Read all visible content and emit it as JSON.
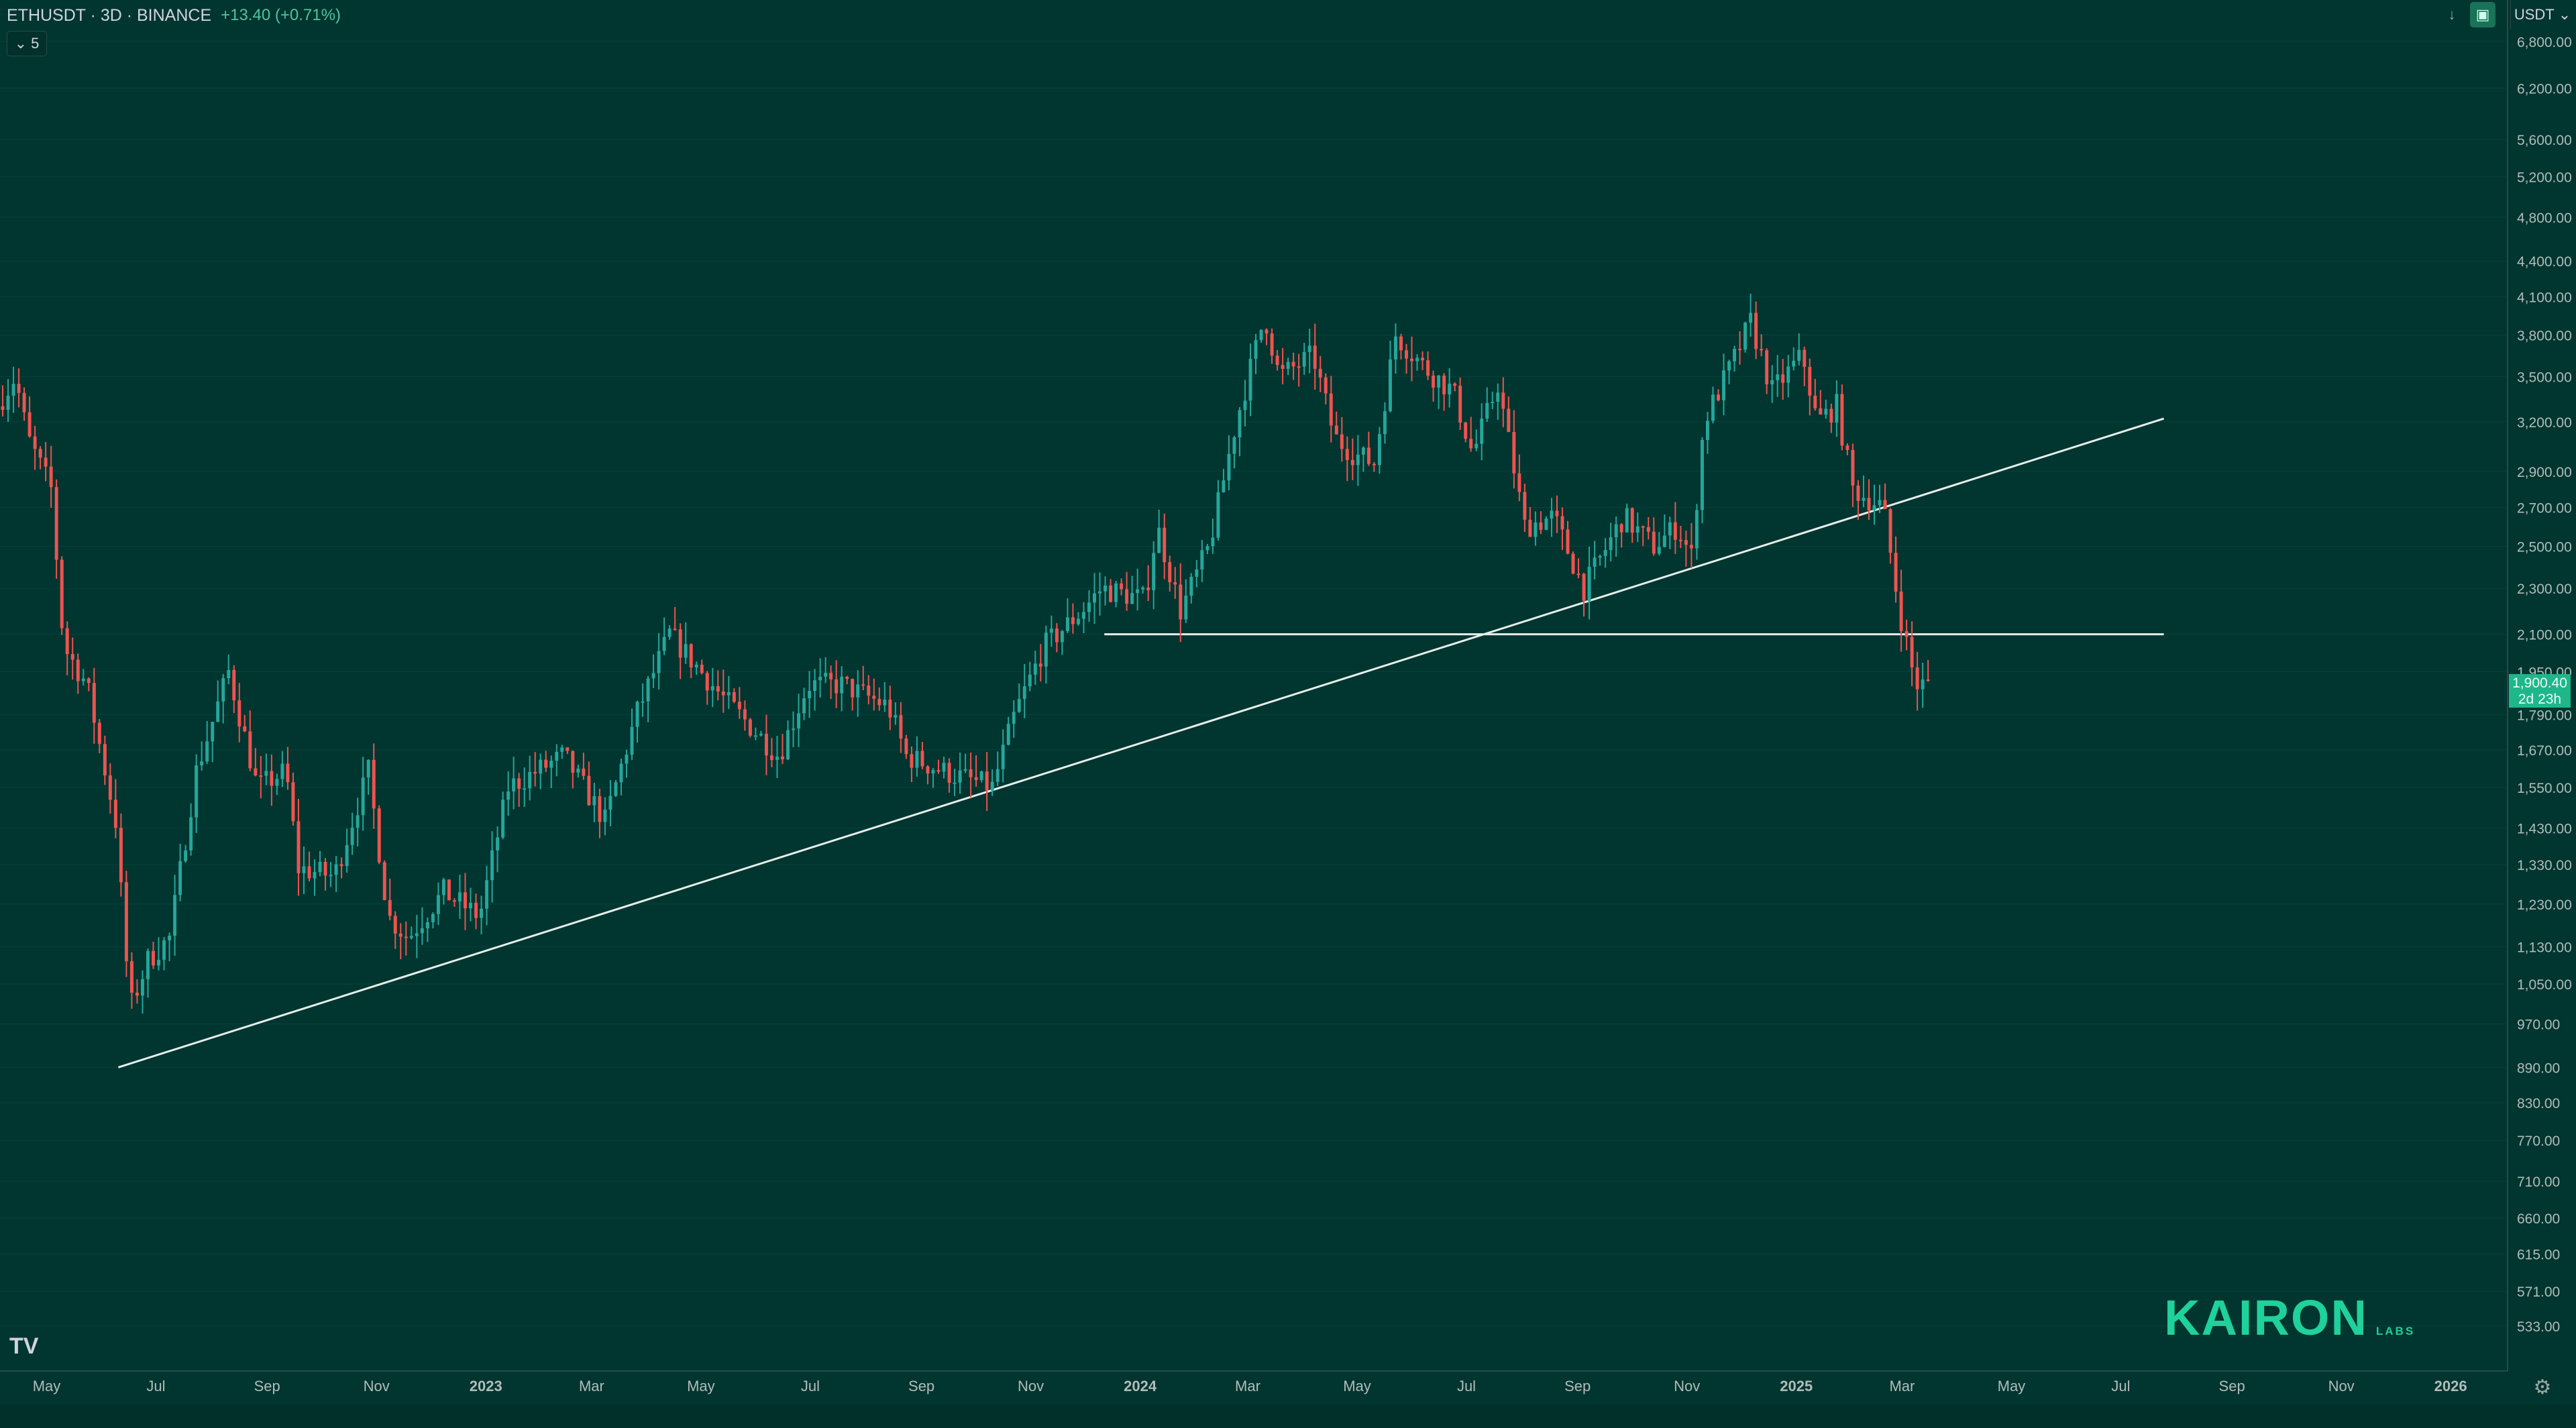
{
  "header": {
    "symbol_line": "ETHUSDT · 3D · BINANCE",
    "change": "+13.40 (+0.71%)"
  },
  "indicator_toggle": {
    "count": "5"
  },
  "currency": "USDT",
  "last_price": {
    "value": "1,900.40",
    "countdown": "2d 23h"
  },
  "watermark": {
    "brand": "KAIRON",
    "sub": "LABS"
  },
  "colors": {
    "background": "#013530",
    "up": "#26a69a",
    "down": "#ef5350",
    "trendline": "#e6efe9",
    "accent": "#1fd19a"
  },
  "chart_data": {
    "type": "candlestick",
    "yscale": "log",
    "ylim": [
      500,
      7000
    ],
    "xlim": [
      "2022-04-05",
      "2026-02-01"
    ],
    "y_ticks": [
      533,
      571,
      615,
      660,
      710,
      770,
      830,
      890,
      970,
      1050,
      1130,
      1230,
      1330,
      1430,
      1550,
      1670,
      1790,
      1950,
      2100,
      2300,
      2500,
      2700,
      2900,
      3200,
      3500,
      3800,
      4100,
      4400,
      4800,
      5200,
      5600,
      6200,
      6800
    ],
    "y_tick_labels": [
      "533.00",
      "571.00",
      "615.00",
      "660.00",
      "710.00",
      "770.00",
      "830.00",
      "890.00",
      "970.00",
      "1,050.00",
      "1,130.00",
      "1,230.00",
      "1,330.00",
      "1,430.00",
      "1,550.00",
      "1,670.00",
      "1,790.00",
      "1,950.00",
      "2,100.00",
      "2,300.00",
      "2,500.00",
      "2,700.00",
      "2,900.00",
      "3,200.00",
      "3,500.00",
      "3,800.00",
      "4,100.00",
      "4,400.00",
      "4,800.00",
      "5,200.00",
      "5,600.00",
      "6,200.00",
      "6,800.00"
    ],
    "x_ticks": [
      {
        "date": "2022-05-01",
        "label": "May"
      },
      {
        "date": "2022-07-01",
        "label": "Jul"
      },
      {
        "date": "2022-09-01",
        "label": "Sep"
      },
      {
        "date": "2022-11-01",
        "label": "Nov"
      },
      {
        "date": "2023-01-01",
        "label": "2023"
      },
      {
        "date": "2023-03-01",
        "label": "Mar"
      },
      {
        "date": "2023-05-01",
        "label": "May"
      },
      {
        "date": "2023-07-01",
        "label": "Jul"
      },
      {
        "date": "2023-09-01",
        "label": "Sep"
      },
      {
        "date": "2023-11-01",
        "label": "Nov"
      },
      {
        "date": "2024-01-01",
        "label": "2024"
      },
      {
        "date": "2024-03-01",
        "label": "Mar"
      },
      {
        "date": "2024-05-01",
        "label": "May"
      },
      {
        "date": "2024-07-01",
        "label": "Jul"
      },
      {
        "date": "2024-09-01",
        "label": "Sep"
      },
      {
        "date": "2024-11-01",
        "label": "Nov"
      },
      {
        "date": "2025-01-01",
        "label": "2025"
      },
      {
        "date": "2025-03-01",
        "label": "Mar"
      },
      {
        "date": "2025-05-01",
        "label": "May"
      },
      {
        "date": "2025-07-01",
        "label": "Jul"
      },
      {
        "date": "2025-09-01",
        "label": "Sep"
      },
      {
        "date": "2025-11-01",
        "label": "Nov"
      },
      {
        "date": "2026-01-01",
        "label": "2026"
      }
    ],
    "price_path": [
      [
        "2022-04-05",
        3300
      ],
      [
        "2022-04-15",
        3500
      ],
      [
        "2022-04-22",
        3100
      ],
      [
        "2022-05-05",
        2800
      ],
      [
        "2022-05-12",
        2050
      ],
      [
        "2022-05-25",
        1900
      ],
      [
        "2022-06-10",
        1450
      ],
      [
        "2022-06-18",
        1000
      ],
      [
        "2022-06-28",
        1100
      ],
      [
        "2022-07-10",
        1150
      ],
      [
        "2022-07-25",
        1600
      ],
      [
        "2022-08-12",
        1950
      ],
      [
        "2022-08-28",
        1550
      ],
      [
        "2022-09-13",
        1600
      ],
      [
        "2022-09-20",
        1320
      ],
      [
        "2022-10-10",
        1300
      ],
      [
        "2022-10-29",
        1600
      ],
      [
        "2022-11-09",
        1200
      ],
      [
        "2022-11-20",
        1150
      ],
      [
        "2022-12-10",
        1260
      ],
      [
        "2022-12-30",
        1200
      ],
      [
        "2023-01-15",
        1550
      ],
      [
        "2023-02-15",
        1650
      ],
      [
        "2023-03-10",
        1450
      ],
      [
        "2023-03-28",
        1800
      ],
      [
        "2023-04-15",
        2100
      ],
      [
        "2023-05-15",
        1850
      ],
      [
        "2023-06-15",
        1650
      ],
      [
        "2023-07-01",
        1900
      ],
      [
        "2023-07-20",
        1900
      ],
      [
        "2023-08-15",
        1820
      ],
      [
        "2023-08-25",
        1650
      ],
      [
        "2023-09-15",
        1600
      ],
      [
        "2023-10-12",
        1550
      ],
      [
        "2023-10-25",
        1800
      ],
      [
        "2023-11-10",
        2050
      ],
      [
        "2023-12-01",
        2200
      ],
      [
        "2023-12-12",
        2300
      ],
      [
        "2024-01-05",
        2250
      ],
      [
        "2024-01-12",
        2600
      ],
      [
        "2024-01-25",
        2200
      ],
      [
        "2024-02-10",
        2500
      ],
      [
        "2024-02-25",
        3200
      ],
      [
        "2024-03-12",
        3950
      ],
      [
        "2024-03-20",
        3500
      ],
      [
        "2024-04-08",
        3650
      ],
      [
        "2024-04-20",
        3100
      ],
      [
        "2024-05-01",
        3000
      ],
      [
        "2024-05-12",
        2950
      ],
      [
        "2024-05-24",
        3800
      ],
      [
        "2024-06-10",
        3550
      ],
      [
        "2024-06-25",
        3400
      ],
      [
        "2024-07-06",
        3000
      ],
      [
        "2024-07-20",
        3450
      ],
      [
        "2024-08-04",
        2600
      ],
      [
        "2024-08-20",
        2650
      ],
      [
        "2024-09-06",
        2300
      ],
      [
        "2024-09-28",
        2650
      ],
      [
        "2024-10-15",
        2500
      ],
      [
        "2024-10-28",
        2600
      ],
      [
        "2024-11-05",
        2450
      ],
      [
        "2024-11-12",
        3200
      ],
      [
        "2024-11-28",
        3600
      ],
      [
        "2024-12-08",
        3900
      ],
      [
        "2024-12-20",
        3400
      ],
      [
        "2025-01-06",
        3650
      ],
      [
        "2025-01-14",
        3200
      ],
      [
        "2025-01-25",
        3300
      ],
      [
        "2025-02-03",
        2800
      ],
      [
        "2025-02-20",
        2700
      ],
      [
        "2025-03-01",
        2200
      ],
      [
        "2025-03-10",
        1900
      ],
      [
        "2025-03-14",
        1900
      ]
    ],
    "trendlines": [
      {
        "start": [
          "2022-06-10",
          890
        ],
        "end": [
          "2025-07-25",
          3220
        ]
      },
      {
        "start": [
          "2023-12-12",
          2100
        ],
        "end": [
          "2025-07-25",
          2100
        ]
      }
    ],
    "last_price": 1900.4
  }
}
